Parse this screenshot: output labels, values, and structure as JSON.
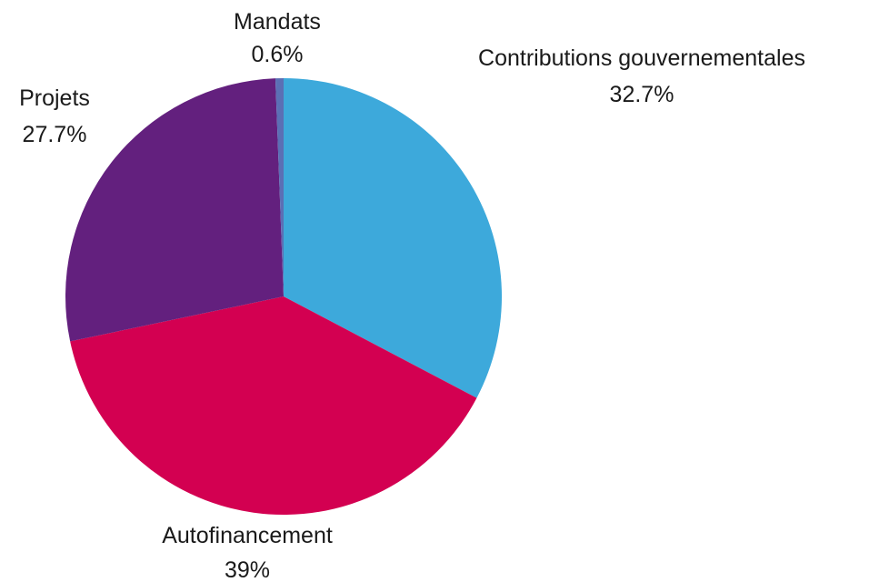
{
  "chart_data": {
    "type": "pie",
    "start_angle_deg": 0,
    "direction": "clockwise",
    "slices": [
      {
        "name": "Contributions gouvernementales",
        "value": 32.7,
        "label": "32.7%",
        "color": "#3DA9DB"
      },
      {
        "name": "Autofinancement",
        "value": 39,
        "label": "39%",
        "color": "#D30051"
      },
      {
        "name": "Projets",
        "value": 27.7,
        "label": "27.7%",
        "color": "#63207E"
      },
      {
        "name": "Mandats",
        "value": 0.6,
        "label": "0.6%",
        "color": "#5B6FB5"
      }
    ]
  }
}
